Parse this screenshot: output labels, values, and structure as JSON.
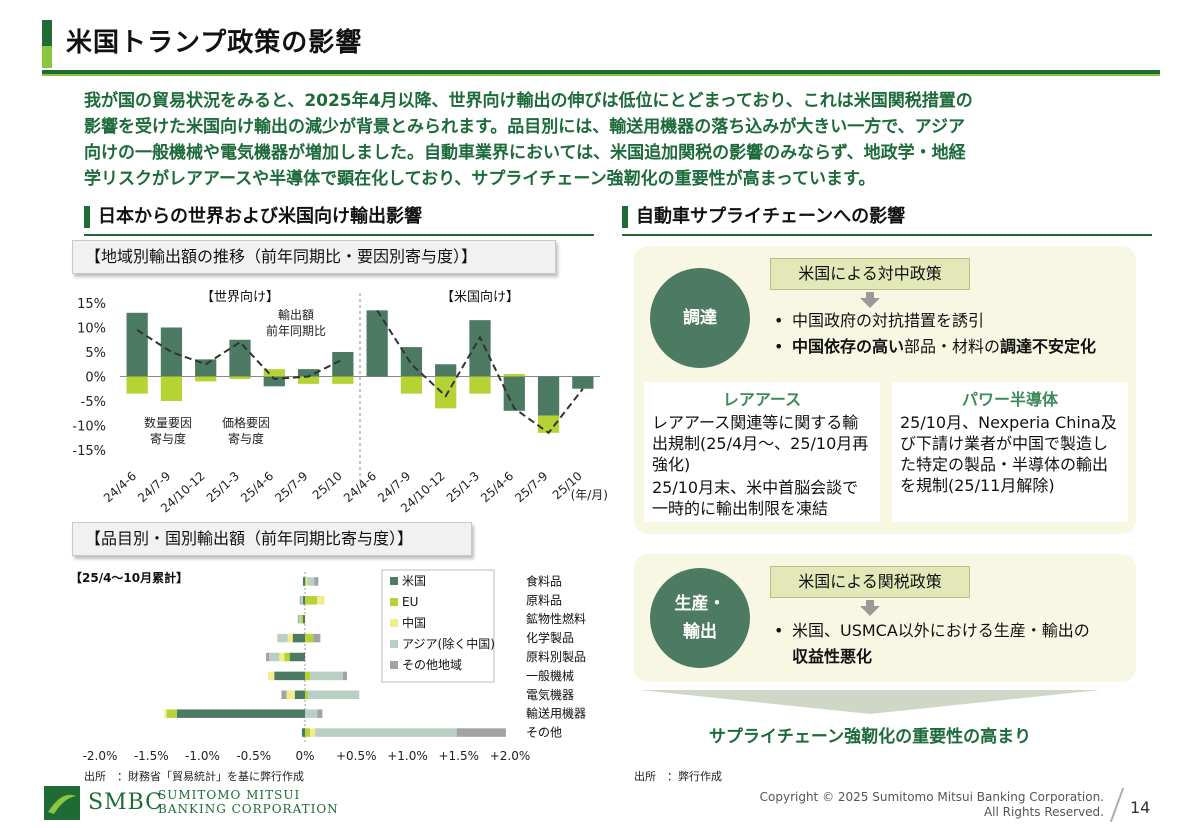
{
  "header": {
    "title": "米国トランプ政策の影響"
  },
  "summary": {
    "lines": [
      "我が国の貿易状況をみると、2025年4月以降、世界向け輸出の伸びは低位にとどまっており、これは米国関税措置の",
      "影響を受けた米国向け輸出の減少が背景とみられます。品目別には、輸送用機器の落ち込みが大きい一方で、アジア",
      "向けの一般機械や電気機器が増加しました。自動車業界においては、米国追加関税の影響のみならず、地政学・地経",
      "学リスクがレアアースや半導体で顕在化しており、サプライチェーン強靭化の重要性が高まっています。"
    ]
  },
  "left_section": {
    "heading": "日本からの世界および米国向け輸出影響",
    "chart1_label": "【地域別輸出額の推移（前年同期比・要因別寄与度）】",
    "chart2_label": "【品目別・国別輸出額（前年同期比寄与度）】",
    "source": "出所　：財務省「貿易統計」を基に弊行作成"
  },
  "right_section": {
    "heading": "自動車サプライチェーンへの影響",
    "procurement": {
      "circle": "調達",
      "policy": "米国による対中政策",
      "bullet1": "中国政府の対抗措置を誘引",
      "bullet2_bold1": "中国依存の高い",
      "bullet2_mid": "部品・材料の",
      "bullet2_bold2": "調達不安定化"
    },
    "rare_earth": {
      "heading": "レアアース",
      "text1": "レアアース関連等に関する輸出規制(25/4月～、25/10月再強化)",
      "text2": "25/10月末、米中首脳会談で一時的に輸出制限を凍結"
    },
    "power_semi": {
      "heading": "パワー半導体",
      "text1": "25/10月、Nexperia China及び下請け業者が中国で製造した特定の製品・半導体の輸出を規制(25/11月解除)"
    },
    "production": {
      "circle_line1": "生産・",
      "circle_line2": "輸出",
      "policy": "米国による関税政策",
      "bullet1": "米国、USMCA以外における生産・輸出の",
      "bullet1_bold": "収益性悪化"
    },
    "conclusion": "サプライチェーン強靭化の重要性の高まり",
    "source": "出所　：弊行作成"
  },
  "footer": {
    "brand": "SMBC",
    "corp_line1": "SUMITOMO MITSUI",
    "corp_line2": "BANKING CORPORATION",
    "copyright_line1": "Copyright © 2025 Sumitomo Mitsui Banking Corporation.",
    "copyright_line2": "All Rights Reserved.",
    "page_number": "14"
  },
  "colors": {
    "us": "#4d7a63",
    "eu": "#b5d334",
    "china": "#f2ec8c",
    "asia": "#b8cfc4",
    "other": "#a3a3a3"
  },
  "chart_data": [
    {
      "type": "bar",
      "title": "【地域別輸出額の推移（前年同期比・要因別寄与度）】",
      "unit_label": "(年/月)",
      "ylim": [
        -15,
        15
      ],
      "y_ticks": [
        "15%",
        "10%",
        "5%",
        "0%",
        "-5%",
        "-10%",
        "-15%"
      ],
      "y_tick_values": [
        15,
        10,
        5,
        0,
        -5,
        -10,
        -15
      ],
      "groups": [
        {
          "name": "【世界向け】",
          "categories": [
            "24/4-6",
            "24/7-9",
            "24/10-12",
            "25/1-3",
            "25/4-6",
            "25/7-9",
            "25/10"
          ],
          "series": [
            {
              "name": "数量要因",
              "values": [
                13,
                10,
                3.5,
                7.5,
                -2,
                1.5,
                5
              ]
            },
            {
              "name": "価格要因",
              "values": [
                -3.5,
                -5,
                -1,
                -0.5,
                1.5,
                -1.5,
                -1.5
              ]
            },
            {
              "name": "輸出額前年同期比",
              "values": [
                9.5,
                5,
                2.5,
                7,
                -0.5,
                0,
                3.5
              ]
            }
          ]
        },
        {
          "name": "【米国向け】",
          "categories": [
            "24/4-6",
            "24/7-9",
            "24/10-12",
            "25/1-3",
            "25/4-6",
            "25/7-9",
            "25/10"
          ],
          "series": [
            {
              "name": "数量要因",
              "values": [
                13.5,
                6,
                2.5,
                11.5,
                -7,
                -8,
                -2.5
              ]
            },
            {
              "name": "価格要因",
              "values": [
                0,
                -3.5,
                -6.5,
                -3.5,
                0.5,
                -3.5,
                0
              ]
            },
            {
              "name": "輸出額前年同期比",
              "values": [
                13.5,
                2.5,
                -4,
                8,
                -6.5,
                -11.5,
                -2.5
              ]
            }
          ]
        }
      ],
      "annotations": {
        "line_label_1": "輸出額",
        "line_label_2": "前年同期比",
        "qty_label_1": "数量要因",
        "qty_label_2": "寄与度",
        "price_label_1": "価格要因",
        "price_label_2": "寄与度"
      }
    },
    {
      "type": "bar",
      "orientation": "horizontal-stacked",
      "title": "【品目別・国別輸出額（前年同期比寄与度）】",
      "subtitle": "【25/4～10月累計】",
      "xlim": [
        -2.0,
        2.0
      ],
      "x_ticks": [
        "-2.0%",
        "-1.5%",
        "-1.0%",
        "-0.5%",
        "0%",
        "+0.5%",
        "+1.0%",
        "+1.5%",
        "+2.0%"
      ],
      "x_tick_values": [
        -2.0,
        -1.5,
        -1.0,
        -0.5,
        0,
        0.5,
        1.0,
        1.5,
        2.0
      ],
      "categories": [
        "食料品",
        "原料品",
        "鉱物性燃料",
        "化学製品",
        "原料別製品",
        "一般機械",
        "電気機器",
        "輸送用機器",
        "その他"
      ],
      "legend": [
        "米国",
        "EU",
        "中国",
        "アジア(除く中国)",
        "その他地域"
      ],
      "series": [
        {
          "name": "米国",
          "values": [
            -0.02,
            -0.02,
            -0.02,
            -0.12,
            -0.15,
            -0.3,
            -0.1,
            -1.25,
            -0.03
          ]
        },
        {
          "name": "EU",
          "values": [
            0.01,
            0.12,
            -0.02,
            0.08,
            -0.05,
            0.05,
            0.03,
            -0.1,
            0.05
          ]
        },
        {
          "name": "中国",
          "values": [
            0.01,
            0.07,
            0.0,
            -0.05,
            -0.05,
            -0.06,
            -0.08,
            -0.02,
            0.05
          ]
        },
        {
          "name": "アジア(除く中国)",
          "values": [
            0.07,
            -0.02,
            -0.02,
            -0.1,
            -0.1,
            0.32,
            0.5,
            0.12,
            1.38
          ]
        },
        {
          "name": "その他地域",
          "values": [
            0.04,
            -0.01,
            -0.01,
            0.07,
            -0.03,
            0.04,
            -0.05,
            0.05,
            0.48
          ]
        }
      ]
    }
  ]
}
